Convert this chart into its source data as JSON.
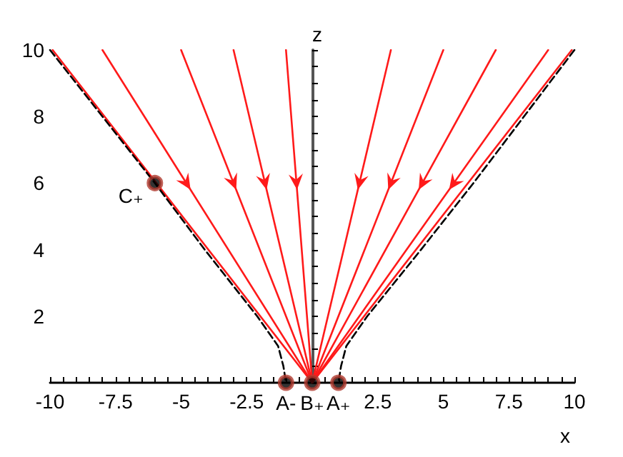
{
  "chart_data": {
    "type": "line",
    "xlabel": "x",
    "ylabel": "z",
    "xlim": [
      -10,
      10
    ],
    "ylim": [
      0,
      10
    ],
    "xticks": [
      -10,
      {
        "value": -9.5,
        "label": null
      },
      {
        "value": -9,
        "label": null
      },
      {
        "value": -8.5,
        "label": null
      },
      {
        "value": -8,
        "label": null
      },
      -7.5,
      {
        "value": -7,
        "label": null
      },
      {
        "value": -6.5,
        "label": null
      },
      {
        "value": -6,
        "label": null
      },
      {
        "value": -5.5,
        "label": null
      },
      -5,
      {
        "value": -4.5,
        "label": null
      },
      {
        "value": -4,
        "label": null
      },
      {
        "value": -3.5,
        "label": null
      },
      {
        "value": -3,
        "label": null
      },
      -2.5,
      {
        "value": -2,
        "label": null
      },
      {
        "value": -1.5,
        "label": null
      },
      {
        "value": -1,
        "label": null
      },
      {
        "value": -0.5,
        "label": null
      },
      {
        "value": 0,
        "label": null
      },
      {
        "value": 0.5,
        "label": null
      },
      {
        "value": 1,
        "label": null
      },
      {
        "value": 1.5,
        "label": null
      },
      {
        "value": 2,
        "label": null
      },
      2.5,
      {
        "value": 3,
        "label": null
      },
      {
        "value": 3.5,
        "label": null
      },
      {
        "value": 4,
        "label": null
      },
      {
        "value": 4.5,
        "label": null
      },
      5,
      {
        "value": 5.5,
        "label": null
      },
      {
        "value": 6,
        "label": null
      },
      {
        "value": 6.5,
        "label": null
      },
      {
        "value": 7,
        "label": null
      },
      7.5,
      {
        "value": 8,
        "label": null
      },
      {
        "value": 8.5,
        "label": null
      },
      {
        "value": 9,
        "label": null
      },
      {
        "value": 9.5,
        "label": null
      },
      10
    ],
    "yticks": [
      {
        "value": 0,
        "label": null
      },
      {
        "value": 0.5,
        "label": null
      },
      {
        "value": 1,
        "label": null
      },
      {
        "value": 1.5,
        "label": null
      },
      2,
      {
        "value": 2.5,
        "label": null
      },
      {
        "value": 3,
        "label": null
      },
      {
        "value": 3.5,
        "label": null
      },
      4,
      {
        "value": 4.5,
        "label": null
      },
      {
        "value": 5,
        "label": null
      },
      {
        "value": 5.5,
        "label": null
      },
      6,
      {
        "value": 6.5,
        "label": null
      },
      {
        "value": 7,
        "label": null
      },
      {
        "value": 7.5,
        "label": null
      },
      8,
      {
        "value": 8.5,
        "label": null
      },
      {
        "value": 9,
        "label": null
      },
      {
        "value": 9.5,
        "label": null
      },
      10
    ],
    "marker": "none",
    "series": [
      {
        "color": "#ff1a1a",
        "x": [
          -9.9,
          0
        ],
        "values": [
          10,
          0
        ]
      },
      {
        "color": "#ff1a1a",
        "x": [
          -8,
          0
        ],
        "values": [
          10,
          0
        ]
      },
      {
        "color": "#ff1a1a",
        "x": [
          -5,
          0
        ],
        "values": [
          10,
          0
        ]
      },
      {
        "color": "#ff1a1a",
        "x": [
          -3,
          0
        ],
        "values": [
          10,
          0
        ]
      },
      {
        "color": "#ff1a1a",
        "x": [
          -1,
          0
        ],
        "values": [
          10,
          0
        ]
      },
      {
        "color": "#ff1a1a",
        "x": [
          3,
          0
        ],
        "values": [
          10,
          0
        ]
      },
      {
        "color": "#ff1a1a",
        "x": [
          5,
          0
        ],
        "values": [
          10,
          0
        ]
      },
      {
        "color": "#ff1a1a",
        "x": [
          7,
          0
        ],
        "values": [
          10,
          0
        ]
      },
      {
        "color": "#ff1a1a",
        "x": [
          9,
          0
        ],
        "values": [
          10,
          0
        ]
      },
      {
        "color": "#ff1a1a",
        "x": [
          9.9,
          0
        ],
        "values": [
          10,
          0
        ]
      },
      {
        "color": "#000000",
        "line_style": "dashed",
        "x": [
          -10,
          -6,
          -4.1,
          -2.1,
          -1.3,
          -1.1,
          -1
        ],
        "values": [
          10,
          6,
          4,
          2,
          1.1,
          0.5,
          0
        ]
      },
      {
        "color": "#000000",
        "line_style": "dashed",
        "x": [
          10,
          6.15,
          4.15,
          2.1,
          1.3,
          1.1,
          1
        ],
        "values": [
          10,
          6,
          4,
          2,
          1.1,
          0.5,
          0
        ]
      },
      {
        "type": "scatter",
        "color": "#b03a2e",
        "marker": "circle",
        "x": [
          -1,
          0,
          1,
          -6
        ],
        "values": [
          0,
          0,
          0,
          6
        ]
      }
    ],
    "annotations": [
      {
        "text": "A-",
        "x": -1,
        "y": 0
      },
      {
        "text": "B₊",
        "x": 0,
        "y": 0
      },
      {
        "text": "A₊",
        "x": 1,
        "y": 0
      },
      {
        "text": "C₊",
        "x": -6,
        "y": 6
      }
    ]
  }
}
